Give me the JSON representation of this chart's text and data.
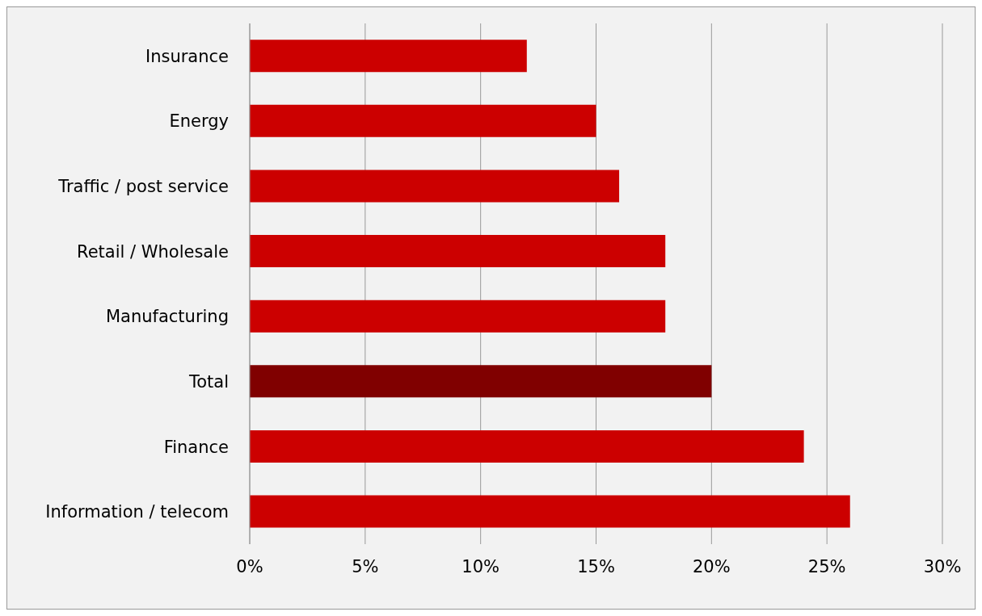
{
  "chart_data": {
    "type": "bar",
    "orientation": "horizontal",
    "categories": [
      "Insurance",
      "Energy",
      "Traffic / post service",
      "Retail / Wholesale",
      "Manufacturing",
      "Total",
      "Finance",
      "Information / telecom"
    ],
    "values": [
      12,
      15,
      16,
      18,
      18,
      20,
      24,
      26
    ],
    "colors": [
      "#cc0000",
      "#cc0000",
      "#cc0000",
      "#cc0000",
      "#cc0000",
      "#800000",
      "#cc0000",
      "#cc0000"
    ],
    "xlim": [
      0,
      30
    ],
    "xticks": [
      {
        "value": 0,
        "label": "0%"
      },
      {
        "value": 5,
        "label": "5%"
      },
      {
        "value": 10,
        "label": "10%"
      },
      {
        "value": 15,
        "label": "15%"
      },
      {
        "value": 20,
        "label": "20%"
      },
      {
        "value": 25,
        "label": "25%"
      },
      {
        "value": 30,
        "label": "30%"
      }
    ],
    "grid": "x"
  }
}
